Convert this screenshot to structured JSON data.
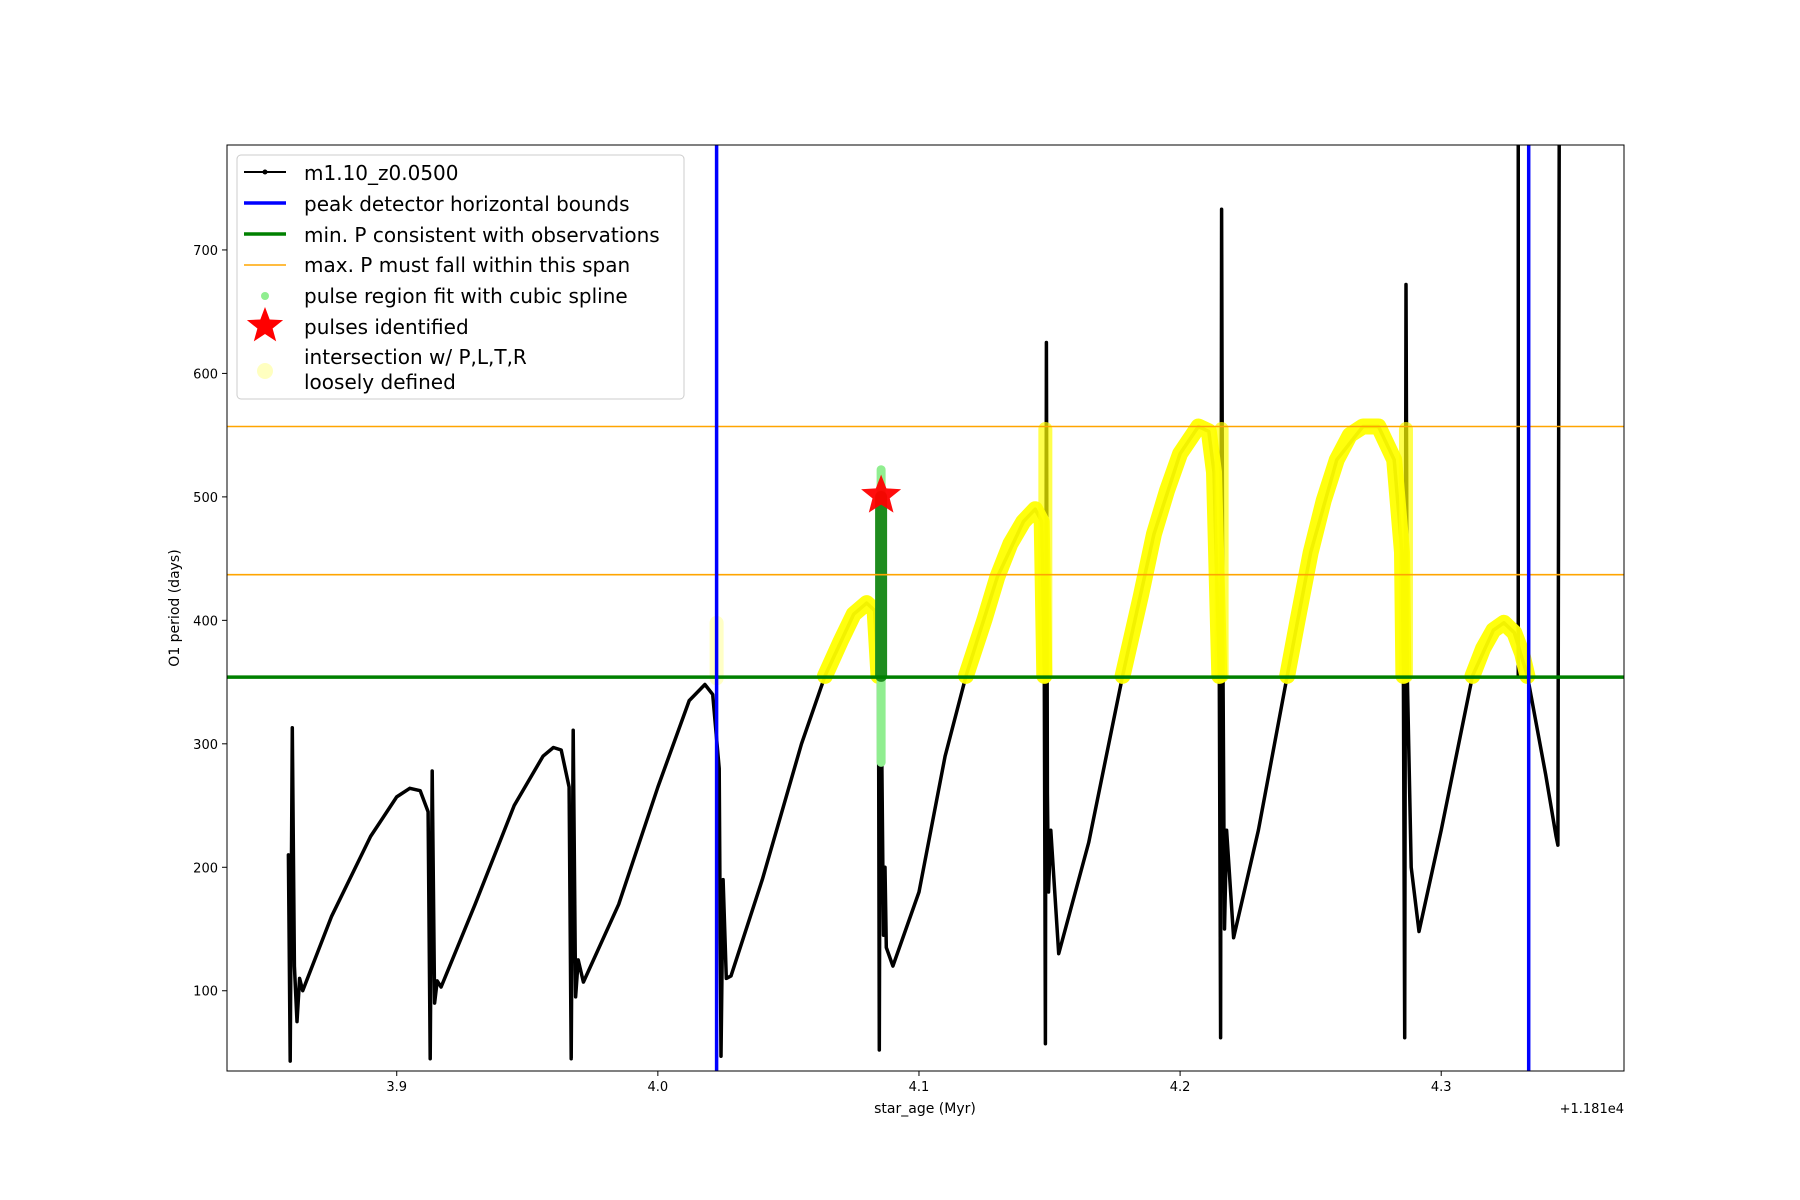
{
  "chart_data": {
    "type": "line",
    "xlabel": "star_age (Myr)",
    "ylabel": "O1 period (days)",
    "x_offset_label": "+1.181e4",
    "xlim": [
      3.835,
      4.37
    ],
    "ylim": [
      35,
      785
    ],
    "xticks": [
      3.9,
      4.0,
      4.1,
      4.2,
      4.3
    ],
    "xtick_labels": [
      "3.9",
      "4.0",
      "4.1",
      "4.2",
      "4.3"
    ],
    "yticks": [
      100,
      200,
      300,
      400,
      500,
      600,
      700
    ],
    "ytick_labels": [
      "100",
      "200",
      "300",
      "400",
      "500",
      "600",
      "700"
    ],
    "grid": false,
    "legend_position": "top-left",
    "legend": {
      "model": "m1.10_z0.0500",
      "bounds": "peak detector horizontal bounds",
      "minP": "min. P consistent with observations",
      "maxP": "max. P must fall within this span",
      "spline": "pulse region fit with cubic spline",
      "pulses": "pulses identified",
      "intersect_line1": "intersection w/ P,L,T,R",
      "intersect_line2": "loosely defined"
    },
    "reference_lines": {
      "vertical_bounds": [
        4.0225,
        4.3335
      ],
      "min_period": 354,
      "max_period_span": [
        437,
        557
      ]
    },
    "model_curve": [
      [
        3.8585,
        210
      ],
      [
        3.8592,
        43
      ],
      [
        3.86,
        313
      ],
      [
        3.8608,
        120
      ],
      [
        3.8618,
        75
      ],
      [
        3.8628,
        110
      ],
      [
        3.864,
        100
      ],
      [
        3.875,
        160
      ],
      [
        3.89,
        225
      ],
      [
        3.9,
        257
      ],
      [
        3.905,
        264
      ],
      [
        3.909,
        262
      ],
      [
        3.912,
        245
      ],
      [
        3.9128,
        45
      ],
      [
        3.9136,
        278
      ],
      [
        3.9145,
        90
      ],
      [
        3.9155,
        108
      ],
      [
        3.917,
        103
      ],
      [
        3.93,
        170
      ],
      [
        3.945,
        250
      ],
      [
        3.956,
        290
      ],
      [
        3.96,
        297
      ],
      [
        3.963,
        295
      ],
      [
        3.966,
        265
      ],
      [
        3.9668,
        45
      ],
      [
        3.9676,
        311
      ],
      [
        3.9685,
        95
      ],
      [
        3.9695,
        125
      ],
      [
        3.9715,
        107
      ],
      [
        3.985,
        170
      ],
      [
        4.0,
        265
      ],
      [
        4.012,
        335
      ],
      [
        4.018,
        348
      ],
      [
        4.021,
        340
      ],
      [
        4.0235,
        280
      ],
      [
        4.0242,
        47
      ],
      [
        4.025,
        190
      ],
      [
        4.0262,
        110
      ],
      [
        4.028,
        112
      ],
      [
        4.04,
        190
      ],
      [
        4.055,
        300
      ],
      [
        4.064,
        355
      ],
      [
        4.075,
        405
      ],
      [
        4.08,
        414
      ],
      [
        4.083,
        408
      ],
      [
        4.0845,
        355
      ],
      [
        4.0848,
        52
      ],
      [
        4.0852,
        355
      ],
      [
        4.0855,
        495
      ],
      [
        4.0858,
        280
      ],
      [
        4.0864,
        145
      ],
      [
        4.087,
        200
      ],
      [
        4.0875,
        135
      ],
      [
        4.09,
        120
      ],
      [
        4.1,
        180
      ],
      [
        4.11,
        290
      ],
      [
        4.118,
        355
      ],
      [
        4.13,
        435
      ],
      [
        4.14,
        480
      ],
      [
        4.1445,
        490
      ],
      [
        4.147,
        480
      ],
      [
        4.148,
        355
      ],
      [
        4.1484,
        57
      ],
      [
        4.1488,
        625
      ],
      [
        4.1492,
        260
      ],
      [
        4.1496,
        180
      ],
      [
        4.1505,
        230
      ],
      [
        4.1535,
        130
      ],
      [
        4.165,
        220
      ],
      [
        4.178,
        355
      ],
      [
        4.19,
        470
      ],
      [
        4.2,
        535
      ],
      [
        4.207,
        557
      ],
      [
        4.211,
        553
      ],
      [
        4.213,
        520
      ],
      [
        4.215,
        355
      ],
      [
        4.2155,
        62
      ],
      [
        4.2159,
        733
      ],
      [
        4.2163,
        400
      ],
      [
        4.217,
        150
      ],
      [
        4.2178,
        230
      ],
      [
        4.2205,
        143
      ],
      [
        4.23,
        230
      ],
      [
        4.241,
        355
      ],
      [
        4.25,
        455
      ],
      [
        4.26,
        530
      ],
      [
        4.27,
        557
      ],
      [
        4.276,
        557
      ],
      [
        4.282,
        530
      ],
      [
        4.285,
        455
      ],
      [
        4.2855,
        355
      ],
      [
        4.286,
        62
      ],
      [
        4.2865,
        672
      ],
      [
        4.287,
        355
      ],
      [
        4.2885,
        200
      ],
      [
        4.2915,
        148
      ],
      [
        4.3,
        230
      ],
      [
        4.312,
        355
      ],
      [
        4.32,
        392
      ],
      [
        4.324,
        398
      ],
      [
        4.328,
        390
      ],
      [
        4.333,
        355
      ],
      [
        4.34,
        275
      ],
      [
        4.344,
        225
      ],
      [
        4.3447,
        218
      ],
      [
        4.3452,
        785
      ]
    ],
    "black_vertical_x": 4.3295,
    "highlight_segments": [
      [
        [
          4.064,
          355
        ],
        [
          4.07,
          383
        ],
        [
          4.075,
          405
        ],
        [
          4.08,
          414
        ],
        [
          4.083,
          408
        ],
        [
          4.0845,
          355
        ]
      ],
      [
        [
          4.118,
          355
        ],
        [
          4.125,
          400
        ],
        [
          4.13,
          435
        ],
        [
          4.135,
          462
        ],
        [
          4.14,
          480
        ],
        [
          4.1445,
          490
        ],
        [
          4.147,
          480
        ],
        [
          4.148,
          355
        ]
      ],
      [
        [
          4.178,
          355
        ],
        [
          4.185,
          420
        ],
        [
          4.19,
          470
        ],
        [
          4.195,
          505
        ],
        [
          4.2,
          535
        ],
        [
          4.207,
          557
        ],
        [
          4.211,
          553
        ],
        [
          4.213,
          520
        ],
        [
          4.215,
          355
        ]
      ],
      [
        [
          4.241,
          355
        ],
        [
          4.245,
          400
        ],
        [
          4.25,
          455
        ],
        [
          4.255,
          497
        ],
        [
          4.26,
          530
        ],
        [
          4.265,
          550
        ],
        [
          4.27,
          557
        ],
        [
          4.276,
          557
        ],
        [
          4.282,
          530
        ],
        [
          4.285,
          455
        ],
        [
          4.2855,
          355
        ]
      ],
      [
        [
          4.312,
          355
        ],
        [
          4.316,
          377
        ],
        [
          4.32,
          392
        ],
        [
          4.324,
          398
        ],
        [
          4.328,
          390
        ],
        [
          4.331,
          373
        ],
        [
          4.333,
          355
        ]
      ]
    ],
    "highlight_verticals": [
      [
        4.0225,
        353,
        398
      ],
      [
        4.1484,
        355,
        555
      ],
      [
        4.2159,
        355,
        555
      ],
      [
        4.2865,
        355,
        555
      ]
    ],
    "spline_region": {
      "x": 4.0855,
      "y_from": 285,
      "y_to": 522,
      "dark_from": 355,
      "dark_to": 500
    },
    "pulses": [
      {
        "x": 4.0855,
        "y": 501
      }
    ],
    "colors": {
      "model": "#000000",
      "bounds": "#0000ff",
      "min_period": "#008000",
      "max_period": "#ffa500",
      "spline_light": "#90ee90",
      "spline_dark": "#1e8c1e",
      "pulse": "#ff0000",
      "highlight": "#ffff00",
      "highlight_faint": "#ffffc0"
    }
  }
}
